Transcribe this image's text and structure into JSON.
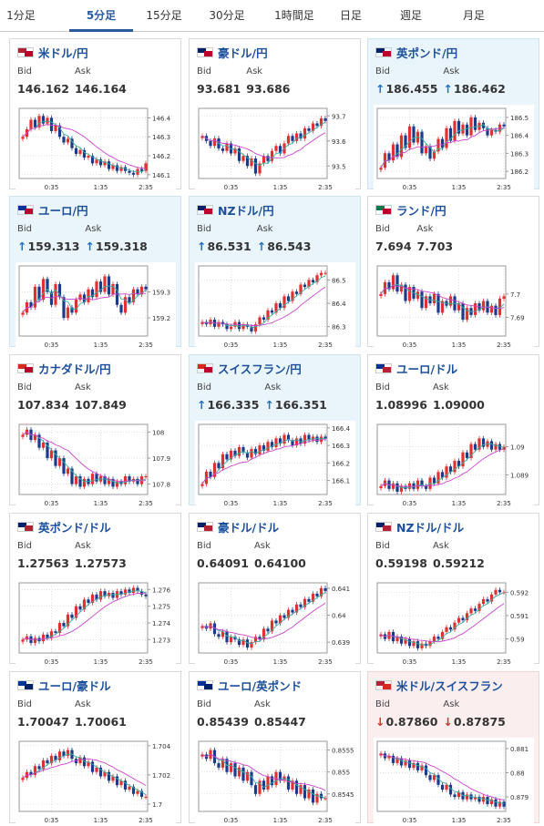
{
  "tabs": [
    {
      "label": "1分足",
      "active": false
    },
    {
      "label": "5分足",
      "active": true
    },
    {
      "label": "15分足",
      "active": false
    },
    {
      "label": "30分足",
      "active": false
    },
    {
      "label": "1時間足",
      "active": false
    },
    {
      "label": "日足",
      "active": false
    },
    {
      "label": "週足",
      "active": false
    },
    {
      "label": "月足",
      "active": false
    }
  ],
  "colors": {
    "accent": "#2a5a9c",
    "pair_title": "#1b4f9b",
    "up_card_bg": "#eaf4fb",
    "down_card_bg": "#fbeeee",
    "up_arrow": "#1f6fc0",
    "down_arrow": "#d03030",
    "candle_up": "#e03030",
    "candle_down": "#1a3a8c",
    "ma_short": "#3bb0a0",
    "ma_long": "#cc44cc"
  },
  "labels": {
    "bid": "Bid",
    "ask": "Ask"
  },
  "cards": [
    {
      "pair": "米ドル/円",
      "flag_a": "#b22234",
      "flag_b": "#bc002d",
      "state": "none",
      "bid": "146.162",
      "ask": "146.164",
      "arrow_bid": "",
      "arrow_ask": "",
      "chart_data": {
        "type": "candlestick",
        "x_ticks": [
          "0:35",
          "1:35",
          "2:35"
        ],
        "y_ticks": [
          "146.4",
          "146.3",
          "146.2",
          "146.1"
        ],
        "ylim": [
          146.08,
          146.45
        ],
        "close": [
          146.3,
          146.34,
          146.39,
          146.35,
          146.41,
          146.37,
          146.4,
          146.33,
          146.36,
          146.3,
          146.27,
          146.29,
          146.24,
          146.21,
          146.23,
          146.19,
          146.2,
          146.16,
          146.18,
          146.15,
          146.17,
          146.13,
          146.15,
          146.12,
          146.14,
          146.12,
          146.11,
          146.1,
          146.13,
          146.12,
          146.16
        ]
      }
    },
    {
      "pair": "豪ドル/円",
      "flag_a": "#012169",
      "flag_b": "#bc002d",
      "state": "none",
      "bid": "93.681",
      "ask": "93.686",
      "arrow_bid": "",
      "arrow_ask": "",
      "chart_data": {
        "type": "candlestick",
        "x_ticks": [
          "0:35",
          "1:35",
          "2:35"
        ],
        "y_ticks": [
          "93.7",
          "93.6",
          "93.5"
        ],
        "ylim": [
          93.45,
          93.73
        ],
        "close": [
          93.62,
          93.6,
          93.58,
          93.61,
          93.57,
          93.56,
          93.59,
          93.55,
          93.57,
          93.52,
          93.54,
          93.5,
          93.53,
          93.47,
          93.51,
          93.54,
          93.52,
          93.56,
          93.58,
          93.55,
          93.59,
          93.62,
          93.6,
          93.63,
          93.61,
          93.65,
          93.64,
          93.67,
          93.66,
          93.69,
          93.68
        ]
      }
    },
    {
      "pair": "英ポンド/円",
      "flag_a": "#012169",
      "flag_b": "#bc002d",
      "state": "up",
      "bid": "186.455",
      "ask": "186.462",
      "arrow_bid": "↑",
      "arrow_ask": "↑",
      "chart_data": {
        "type": "candlestick",
        "x_ticks": [
          "0:35",
          "1:35",
          "2:35"
        ],
        "y_ticks": [
          "186.5",
          "186.4",
          "186.3",
          "186.2"
        ],
        "ylim": [
          186.16,
          186.55
        ],
        "close": [
          186.22,
          186.3,
          186.26,
          186.35,
          186.28,
          186.4,
          186.33,
          186.45,
          186.36,
          186.42,
          186.3,
          186.34,
          186.27,
          186.31,
          186.38,
          186.33,
          186.44,
          186.37,
          186.48,
          186.41,
          186.46,
          186.4,
          186.5,
          186.43,
          186.47,
          186.44,
          186.4,
          186.43,
          186.42,
          186.46,
          186.45
        ]
      }
    },
    {
      "pair": "ユーロ/円",
      "flag_a": "#003399",
      "flag_b": "#bc002d",
      "state": "up",
      "bid": "159.313",
      "ask": "159.318",
      "arrow_bid": "↑",
      "arrow_ask": "↑",
      "chart_data": {
        "type": "candlestick",
        "x_ticks": [
          "0:35",
          "1:35",
          "2:35"
        ],
        "y_ticks": [
          "159.3",
          "159.2"
        ],
        "ylim": [
          159.13,
          159.4
        ],
        "close": [
          159.22,
          159.26,
          159.24,
          159.32,
          159.27,
          159.35,
          159.3,
          159.25,
          159.33,
          159.28,
          159.2,
          159.24,
          159.22,
          159.27,
          159.29,
          159.26,
          159.31,
          159.28,
          159.34,
          159.3,
          159.36,
          159.29,
          159.33,
          159.25,
          159.22,
          159.28,
          159.26,
          159.31,
          159.29,
          159.32,
          159.31
        ]
      }
    },
    {
      "pair": "NZドル/円",
      "flag_a": "#012169",
      "flag_b": "#bc002d",
      "state": "up",
      "bid": "86.531",
      "ask": "86.543",
      "arrow_bid": "↑",
      "arrow_ask": "↑",
      "chart_data": {
        "type": "candlestick",
        "x_ticks": [
          "0:35",
          "1:35",
          "2:35"
        ],
        "y_ticks": [
          "86.5",
          "86.4",
          "86.3"
        ],
        "ylim": [
          86.26,
          86.56
        ],
        "close": [
          86.32,
          86.31,
          86.33,
          86.3,
          86.32,
          86.31,
          86.29,
          86.3,
          86.32,
          86.29,
          86.31,
          86.3,
          86.28,
          86.31,
          86.34,
          86.33,
          86.37,
          86.36,
          86.4,
          86.38,
          86.43,
          86.41,
          86.45,
          86.44,
          86.48,
          86.47,
          86.5,
          86.49,
          86.52,
          86.53,
          86.53
        ]
      }
    },
    {
      "pair": "ランド/円",
      "flag_a": "#007a4d",
      "flag_b": "#bc002d",
      "state": "none",
      "bid": "7.694",
      "ask": "7.703",
      "arrow_bid": "",
      "arrow_ask": "",
      "chart_data": {
        "type": "candlestick",
        "x_ticks": [
          "0:35",
          "1:35",
          "2:35"
        ],
        "y_ticks": [
          "7.7",
          "7.69"
        ],
        "ylim": [
          7.682,
          7.712
        ],
        "close": [
          7.7,
          7.705,
          7.702,
          7.708,
          7.701,
          7.704,
          7.697,
          7.703,
          7.698,
          7.701,
          7.694,
          7.699,
          7.696,
          7.7,
          7.692,
          7.697,
          7.695,
          7.699,
          7.693,
          7.696,
          7.689,
          7.694,
          7.691,
          7.696,
          7.693,
          7.697,
          7.692,
          7.695,
          7.691,
          7.698,
          7.699
        ]
      }
    },
    {
      "pair": "カナダドル/円",
      "flag_a": "#d52b1e",
      "flag_b": "#bc002d",
      "state": "none",
      "bid": "107.834",
      "ask": "107.849",
      "arrow_bid": "",
      "arrow_ask": "",
      "chart_data": {
        "type": "candlestick",
        "x_ticks": [
          "0:35",
          "1:35",
          "2:35"
        ],
        "y_ticks": [
          "108",
          "107.9",
          "107.8"
        ],
        "ylim": [
          107.76,
          108.03
        ],
        "close": [
          107.99,
          108.01,
          107.97,
          107.99,
          107.94,
          107.96,
          107.9,
          107.93,
          107.87,
          107.9,
          107.84,
          107.86,
          107.8,
          107.83,
          107.79,
          107.82,
          107.8,
          107.84,
          107.81,
          107.83,
          107.8,
          107.82,
          107.79,
          107.81,
          107.8,
          107.83,
          107.81,
          107.82,
          107.8,
          107.83,
          107.83
        ]
      }
    },
    {
      "pair": "スイスフラン/円",
      "flag_a": "#d52b1e",
      "flag_b": "#bc002d",
      "state": "up",
      "bid": "166.335",
      "ask": "166.351",
      "arrow_bid": "↑",
      "arrow_ask": "↑",
      "chart_data": {
        "type": "candlestick",
        "x_ticks": [
          "0:35",
          "1:35",
          "2:35"
        ],
        "y_ticks": [
          "166.4",
          "166.3",
          "166.2",
          "166.1"
        ],
        "ylim": [
          166.02,
          166.42
        ],
        "close": [
          166.08,
          166.15,
          166.12,
          166.2,
          166.17,
          166.25,
          166.22,
          166.27,
          166.24,
          166.29,
          166.26,
          166.23,
          166.28,
          166.25,
          166.3,
          166.27,
          166.32,
          166.29,
          166.34,
          166.31,
          166.36,
          166.33,
          166.3,
          166.34,
          166.31,
          166.36,
          166.33,
          166.35,
          166.32,
          166.35,
          166.34
        ]
      }
    },
    {
      "pair": "ユーロ/ドル",
      "flag_a": "#003399",
      "flag_b": "#b22234",
      "state": "none",
      "bid": "1.08996",
      "ask": "1.09000",
      "arrow_bid": "",
      "arrow_ask": "",
      "chart_data": {
        "type": "candlestick",
        "x_ticks": [
          "0:35",
          "1:35",
          "2:35"
        ],
        "y_ticks": [
          "1.09",
          "1.089"
        ],
        "ylim": [
          1.0883,
          1.0908
        ],
        "close": [
          1.0886,
          1.0888,
          1.0885,
          1.0887,
          1.0884,
          1.0886,
          1.0885,
          1.0887,
          1.0885,
          1.0888,
          1.0886,
          1.0885,
          1.0889,
          1.0887,
          1.0891,
          1.0889,
          1.0893,
          1.0891,
          1.0895,
          1.0893,
          1.0898,
          1.0896,
          1.0901,
          1.0899,
          1.0903,
          1.09,
          1.0902,
          1.0899,
          1.0901,
          1.0899,
          1.09
        ]
      }
    },
    {
      "pair": "英ポンド/ドル",
      "flag_a": "#012169",
      "flag_b": "#b22234",
      "state": "none",
      "bid": "1.27563",
      "ask": "1.27573",
      "arrow_bid": "",
      "arrow_ask": "",
      "chart_data": {
        "type": "candlestick",
        "x_ticks": [
          "0:35",
          "1:35",
          "2:35"
        ],
        "y_ticks": [
          "1.276",
          "1.275",
          "1.274",
          "1.273"
        ],
        "ylim": [
          1.2722,
          1.2764
        ],
        "close": [
          1.273,
          1.2732,
          1.2728,
          1.2731,
          1.2729,
          1.2733,
          1.2731,
          1.2735,
          1.2734,
          1.274,
          1.2738,
          1.2745,
          1.2743,
          1.275,
          1.2748,
          1.2754,
          1.2752,
          1.2757,
          1.2754,
          1.2759,
          1.2756,
          1.2758,
          1.2755,
          1.2759,
          1.2757,
          1.276,
          1.2758,
          1.2761,
          1.2759,
          1.2757,
          1.2756
        ]
      }
    },
    {
      "pair": "豪ドル/ドル",
      "flag_a": "#012169",
      "flag_b": "#b22234",
      "state": "none",
      "bid": "0.64091",
      "ask": "0.64100",
      "arrow_bid": "",
      "arrow_ask": "",
      "chart_data": {
        "type": "candlestick",
        "x_ticks": [
          "0:35",
          "1:35",
          "2:35"
        ],
        "y_ticks": [
          "0.641",
          "0.64",
          "0.639"
        ],
        "ylim": [
          0.6386,
          0.6412
        ],
        "close": [
          0.6396,
          0.6395,
          0.6397,
          0.6393,
          0.6392,
          0.6394,
          0.639,
          0.6392,
          0.6391,
          0.6389,
          0.6391,
          0.6388,
          0.639,
          0.6392,
          0.6391,
          0.6395,
          0.6394,
          0.6398,
          0.6397,
          0.64,
          0.6399,
          0.6402,
          0.6401,
          0.6404,
          0.6403,
          0.6406,
          0.6405,
          0.6408,
          0.6407,
          0.641,
          0.6409
        ]
      }
    },
    {
      "pair": "NZドル/ドル",
      "flag_a": "#012169",
      "flag_b": "#b22234",
      "state": "none",
      "bid": "0.59198",
      "ask": "0.59212",
      "arrow_bid": "",
      "arrow_ask": "",
      "chart_data": {
        "type": "candlestick",
        "x_ticks": [
          "0:35",
          "1:35",
          "2:35"
        ],
        "y_ticks": [
          "0.592",
          "0.591",
          "0.59"
        ],
        "ylim": [
          0.5894,
          0.5924
        ],
        "close": [
          0.5902,
          0.59,
          0.5903,
          0.5899,
          0.5901,
          0.5898,
          0.59,
          0.5897,
          0.5899,
          0.5896,
          0.5898,
          0.5897,
          0.5899,
          0.5901,
          0.59,
          0.5903,
          0.5905,
          0.5904,
          0.5907,
          0.5909,
          0.5908,
          0.5911,
          0.5913,
          0.5912,
          0.5915,
          0.5917,
          0.5916,
          0.5919,
          0.5921,
          0.592,
          0.592
        ]
      }
    },
    {
      "pair": "ユーロ/豪ドル",
      "flag_a": "#003399",
      "flag_b": "#012169",
      "state": "none",
      "bid": "1.70047",
      "ask": "1.70061",
      "arrow_bid": "",
      "arrow_ask": "",
      "chart_data": {
        "type": "candlestick",
        "x_ticks": [
          "0:35",
          "1:35",
          "2:35"
        ],
        "y_ticks": [
          "1.704",
          "1.702",
          "1.7"
        ],
        "ylim": [
          1.6995,
          1.7043
        ],
        "close": [
          1.7018,
          1.7022,
          1.702,
          1.7026,
          1.7024,
          1.703,
          1.7028,
          1.7033,
          1.703,
          1.7036,
          1.7033,
          1.7037,
          1.7031,
          1.7028,
          1.7032,
          1.7026,
          1.7029,
          1.7022,
          1.7025,
          1.7019,
          1.7022,
          1.7016,
          1.7019,
          1.7013,
          1.7016,
          1.701,
          1.7012,
          1.7007,
          1.7009,
          1.7005,
          1.7005
        ]
      }
    },
    {
      "pair": "ユーロ/英ポンド",
      "flag_a": "#003399",
      "flag_b": "#012169",
      "state": "none",
      "bid": "0.85439",
      "ask": "0.85447",
      "arrow_bid": "",
      "arrow_ask": "",
      "chart_data": {
        "type": "candlestick",
        "x_ticks": [
          "0:35",
          "1:35",
          "2:35"
        ],
        "y_ticks": [
          "0.8555",
          "0.855",
          "0.8545"
        ],
        "ylim": [
          0.8541,
          0.8557
        ],
        "close": [
          0.8554,
          0.8553,
          0.8555,
          0.8552,
          0.8551,
          0.8553,
          0.855,
          0.8552,
          0.8549,
          0.8551,
          0.8548,
          0.855,
          0.8547,
          0.8545,
          0.8548,
          0.8546,
          0.8549,
          0.8547,
          0.855,
          0.8548,
          0.8549,
          0.8546,
          0.8548,
          0.8545,
          0.8547,
          0.8544,
          0.8546,
          0.8543,
          0.8545,
          0.8544,
          0.8544
        ]
      }
    },
    {
      "pair": "米ドル/スイスフラン",
      "flag_a": "#b22234",
      "flag_b": "#d52b1e",
      "state": "down",
      "bid": "0.87860",
      "ask": "0.87875",
      "arrow_bid": "↓",
      "arrow_ask": "↓",
      "chart_data": {
        "type": "candlestick",
        "x_ticks": [
          "0:35",
          "1:35",
          "2:35"
        ],
        "y_ticks": [
          "0.881",
          "0.88",
          "0.879"
        ],
        "ylim": [
          0.8784,
          0.8813
        ],
        "close": [
          0.8808,
          0.8806,
          0.8807,
          0.8804,
          0.8806,
          0.8803,
          0.8805,
          0.8802,
          0.8804,
          0.8801,
          0.8803,
          0.8799,
          0.8797,
          0.8799,
          0.8795,
          0.8793,
          0.8795,
          0.8791,
          0.879,
          0.8792,
          0.8789,
          0.8791,
          0.8789,
          0.879,
          0.8788,
          0.879,
          0.8787,
          0.8789,
          0.8786,
          0.8788,
          0.8786
        ]
      }
    }
  ]
}
